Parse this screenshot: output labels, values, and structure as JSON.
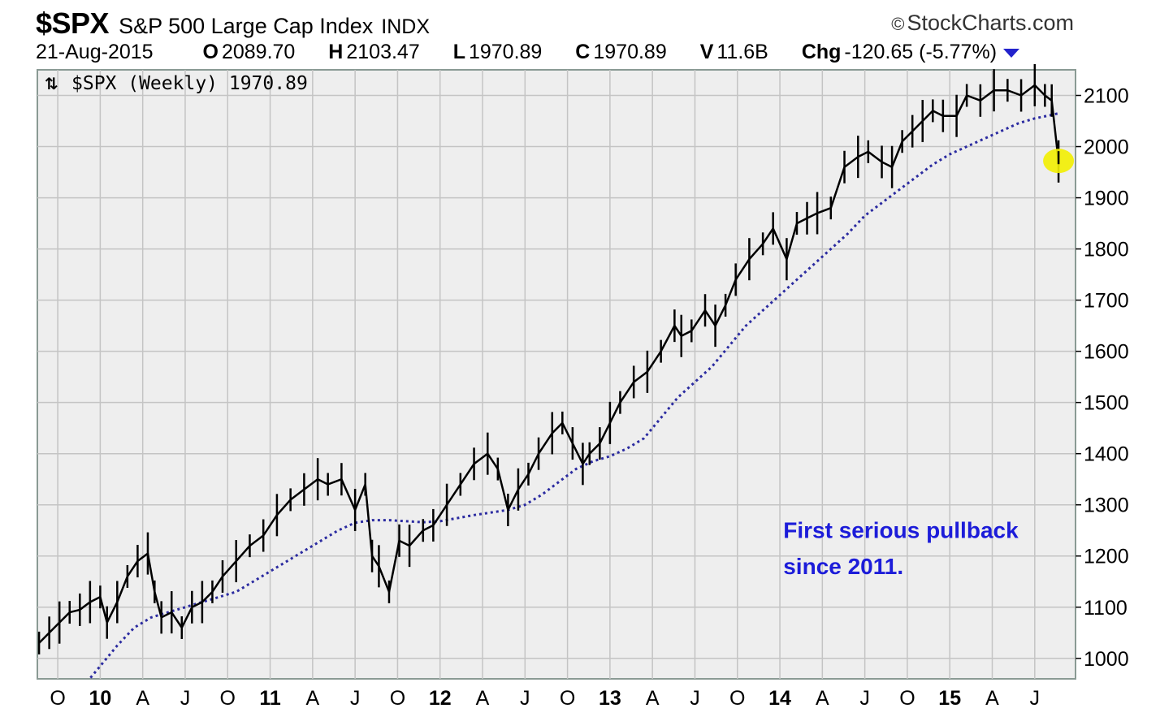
{
  "header": {
    "symbol": "$SPX",
    "name": "S&P 500 Large Cap Index",
    "exchange": "INDX",
    "brand": "StockCharts.com",
    "brand_symbol": "©",
    "date": "21-Aug-2015",
    "open_label": "O",
    "open": "2089.70",
    "high_label": "H",
    "high": "2103.47",
    "low_label": "L",
    "low": "1970.89",
    "close_label": "C",
    "close": "1970.89",
    "volume_label": "V",
    "volume": "11.6B",
    "change_label": "Chg",
    "change": "-120.65 (-5.77%)"
  },
  "chart_data": {
    "type": "line",
    "legend_label": "$SPX (Weekly) 1970.89",
    "ylim": [
      960,
      2150
    ],
    "y_ticks": [
      1000,
      1100,
      1200,
      1300,
      1400,
      1500,
      1600,
      1700,
      1800,
      1900,
      2000,
      2100
    ],
    "x_ticks": [
      {
        "label": "O",
        "pos": 2009.75,
        "bold": false
      },
      {
        "label": "10",
        "pos": 2010.0,
        "bold": true
      },
      {
        "label": "A",
        "pos": 2010.25,
        "bold": false
      },
      {
        "label": "J",
        "pos": 2010.5,
        "bold": false
      },
      {
        "label": "O",
        "pos": 2010.75,
        "bold": false
      },
      {
        "label": "11",
        "pos": 2011.0,
        "bold": true
      },
      {
        "label": "A",
        "pos": 2011.25,
        "bold": false
      },
      {
        "label": "J",
        "pos": 2011.5,
        "bold": false
      },
      {
        "label": "O",
        "pos": 2011.75,
        "bold": false
      },
      {
        "label": "12",
        "pos": 2012.0,
        "bold": true
      },
      {
        "label": "A",
        "pos": 2012.25,
        "bold": false
      },
      {
        "label": "J",
        "pos": 2012.5,
        "bold": false
      },
      {
        "label": "O",
        "pos": 2012.75,
        "bold": false
      },
      {
        "label": "13",
        "pos": 2013.0,
        "bold": true
      },
      {
        "label": "A",
        "pos": 2013.25,
        "bold": false
      },
      {
        "label": "J",
        "pos": 2013.5,
        "bold": false
      },
      {
        "label": "O",
        "pos": 2013.75,
        "bold": false
      },
      {
        "label": "14",
        "pos": 2014.0,
        "bold": true
      },
      {
        "label": "A",
        "pos": 2014.25,
        "bold": false
      },
      {
        "label": "J",
        "pos": 2014.5,
        "bold": false
      },
      {
        "label": "O",
        "pos": 2014.75,
        "bold": false
      },
      {
        "label": "15",
        "pos": 2015.0,
        "bold": true
      },
      {
        "label": "A",
        "pos": 2015.25,
        "bold": false
      },
      {
        "label": "J",
        "pos": 2015.5,
        "bold": false
      }
    ],
    "xlim": [
      2009.63,
      2015.74
    ],
    "grid": true,
    "series": [
      {
        "role": "price",
        "x": [
          2009.64,
          2009.7,
          2009.76,
          2009.82,
          2009.88,
          2009.94,
          2010.0,
          2010.04,
          2010.1,
          2010.16,
          2010.22,
          2010.28,
          2010.32,
          2010.36,
          2010.42,
          2010.48,
          2010.54,
          2010.6,
          2010.66,
          2010.72,
          2010.8,
          2010.88,
          2010.96,
          2011.04,
          2011.12,
          2011.2,
          2011.28,
          2011.34,
          2011.42,
          2011.5,
          2011.56,
          2011.6,
          2011.64,
          2011.7,
          2011.76,
          2011.82,
          2011.9,
          2011.96,
          2012.04,
          2012.12,
          2012.2,
          2012.28,
          2012.34,
          2012.4,
          2012.46,
          2012.52,
          2012.58,
          2012.66,
          2012.72,
          2012.78,
          2012.84,
          2012.88,
          2012.94,
          2013.0,
          2013.06,
          2013.14,
          2013.22,
          2013.3,
          2013.38,
          2013.42,
          2013.48,
          2013.56,
          2013.62,
          2013.68,
          2013.74,
          2013.82,
          2013.9,
          2013.96,
          2014.04,
          2014.1,
          2014.16,
          2014.22,
          2014.3,
          2014.38,
          2014.46,
          2014.52,
          2014.6,
          2014.66,
          2014.72,
          2014.78,
          2014.84,
          2014.9,
          2014.96,
          2015.04,
          2015.1,
          2015.18,
          2015.26,
          2015.34,
          2015.42,
          2015.5,
          2015.56,
          2015.6,
          2015.64
        ],
        "y": [
          1030,
          1050,
          1070,
          1090,
          1095,
          1110,
          1120,
          1070,
          1110,
          1160,
          1190,
          1205,
          1130,
          1080,
          1090,
          1060,
          1100,
          1110,
          1130,
          1160,
          1190,
          1220,
          1240,
          1280,
          1310,
          1330,
          1350,
          1340,
          1350,
          1290,
          1340,
          1200,
          1180,
          1130,
          1230,
          1220,
          1250,
          1260,
          1300,
          1340,
          1380,
          1400,
          1370,
          1290,
          1330,
          1360,
          1400,
          1440,
          1460,
          1420,
          1380,
          1400,
          1420,
          1460,
          1500,
          1540,
          1560,
          1600,
          1650,
          1630,
          1640,
          1680,
          1650,
          1690,
          1740,
          1780,
          1810,
          1840,
          1780,
          1850,
          1860,
          1870,
          1880,
          1960,
          1980,
          1990,
          1970,
          1960,
          2010,
          2030,
          2050,
          2070,
          2060,
          2060,
          2100,
          2090,
          2110,
          2110,
          2100,
          2120,
          2100,
          2090,
          1971
        ]
      },
      {
        "role": "moving-average",
        "x": [
          2009.9,
          2010.0,
          2010.1,
          2010.2,
          2010.3,
          2010.4,
          2010.5,
          2010.6,
          2010.7,
          2010.8,
          2010.9,
          2011.0,
          2011.1,
          2011.2,
          2011.3,
          2011.4,
          2011.5,
          2011.6,
          2011.7,
          2011.8,
          2011.9,
          2012.0,
          2012.1,
          2012.2,
          2012.3,
          2012.4,
          2012.5,
          2012.6,
          2012.7,
          2012.8,
          2012.9,
          2013.0,
          2013.1,
          2013.2,
          2013.3,
          2013.4,
          2013.5,
          2013.6,
          2013.7,
          2013.8,
          2013.9,
          2014.0,
          2014.1,
          2014.2,
          2014.3,
          2014.4,
          2014.5,
          2014.6,
          2014.7,
          2014.8,
          2014.9,
          2015.0,
          2015.1,
          2015.2,
          2015.3,
          2015.4,
          2015.5,
          2015.6,
          2015.64
        ],
        "y": [
          945,
          985,
          1025,
          1060,
          1080,
          1090,
          1100,
          1110,
          1120,
          1130,
          1150,
          1170,
          1190,
          1210,
          1230,
          1250,
          1265,
          1270,
          1270,
          1268,
          1266,
          1268,
          1274,
          1280,
          1285,
          1290,
          1300,
          1320,
          1345,
          1370,
          1385,
          1395,
          1410,
          1430,
          1470,
          1510,
          1540,
          1570,
          1610,
          1650,
          1680,
          1710,
          1740,
          1770,
          1800,
          1830,
          1865,
          1890,
          1915,
          1940,
          1965,
          1985,
          2000,
          2015,
          2030,
          2045,
          2055,
          2062,
          2065
        ]
      }
    ],
    "annotations": [
      {
        "text": "First serious pullback",
        "x": 2014.02,
        "y": 1235
      },
      {
        "text": "since 2011.",
        "x": 2014.02,
        "y": 1165
      }
    ],
    "highlight": {
      "x": 2015.64,
      "y": 1972
    }
  },
  "colors": {
    "plot_bg": "#eeeeee",
    "grid": "#c4c4c4",
    "frame": "#8a9a94",
    "ma": "#2b2ba0",
    "annotation": "#1c1cd9",
    "highlight": "#f2ee00",
    "dropdown": "#2222cc"
  }
}
